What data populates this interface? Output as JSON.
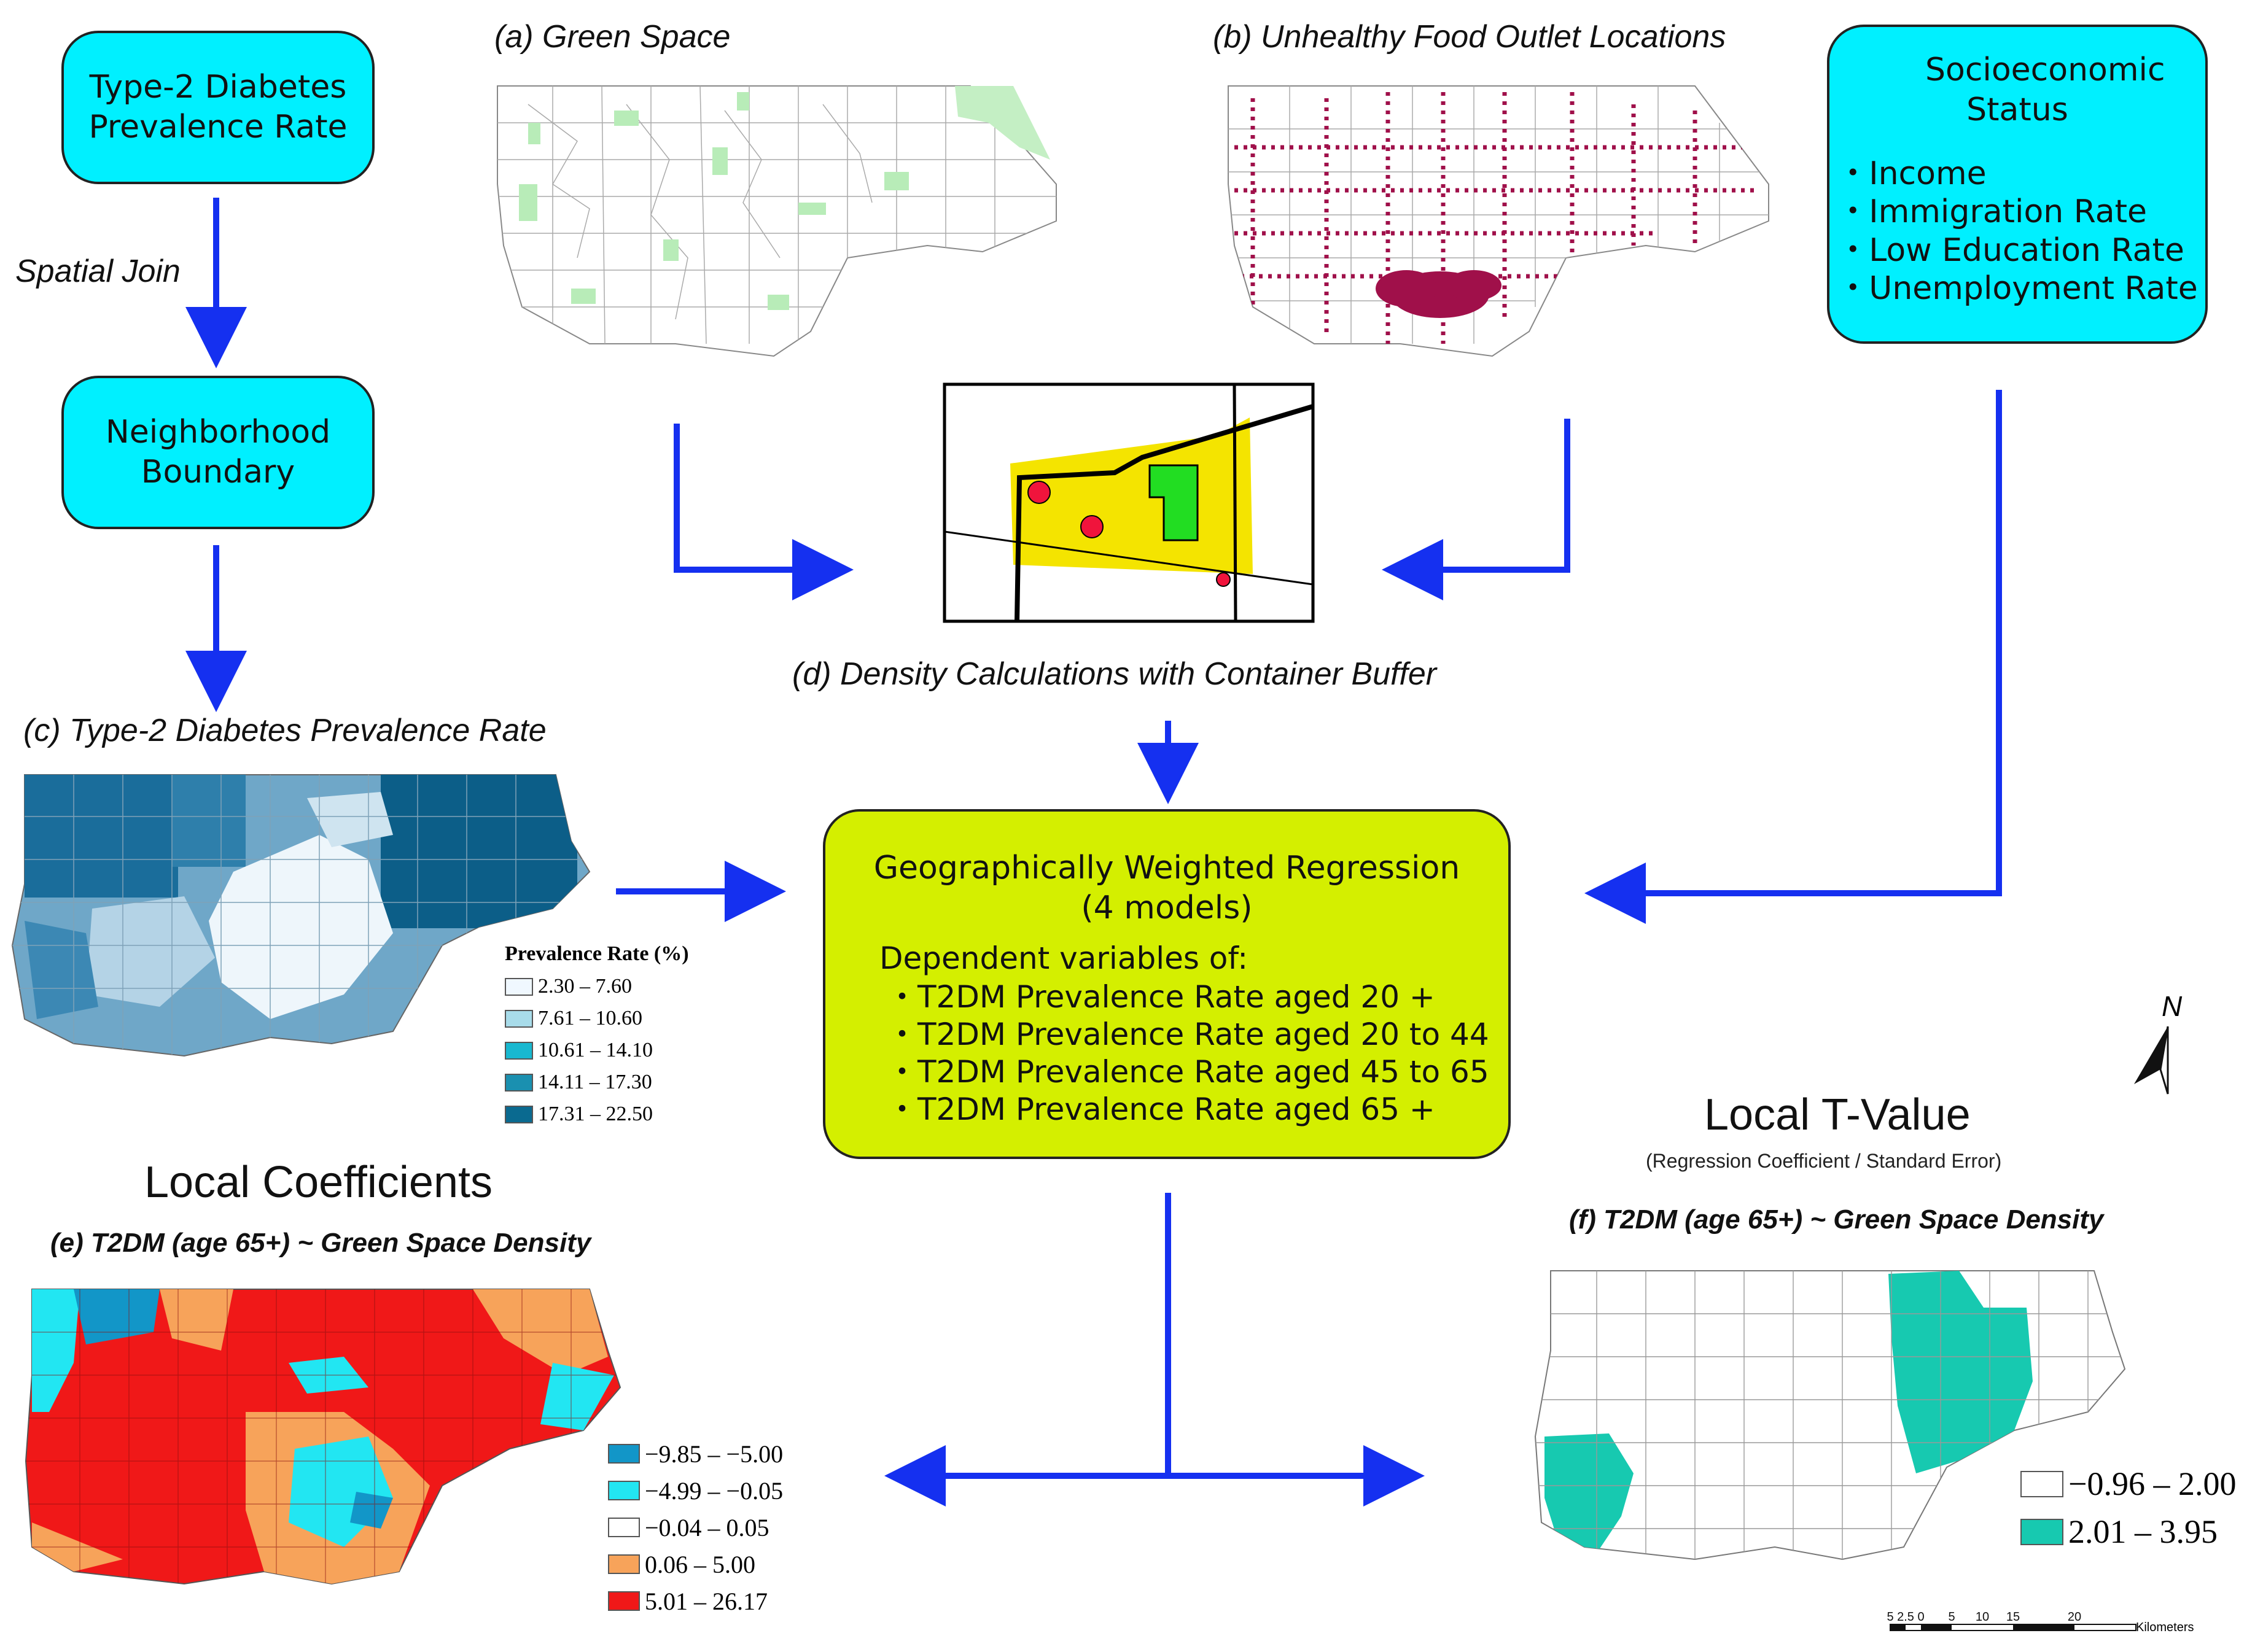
{
  "boxes": {
    "t2dm": "Type-2 Diabetes Prevalence Rate",
    "neighborhood": "Neighborhood Boundary",
    "ses_title": "Socioeconomic Status",
    "ses_items": [
      "Income",
      "Immigration Rate",
      "Low Education Rate",
      "Unemployment Rate"
    ]
  },
  "edge_labels": {
    "spatial_join": "Spatial Join"
  },
  "panels": {
    "a": "(a) Green Space",
    "b": "(b) Unhealthy Food Outlet Locations",
    "c": "(c) Type-2 Diabetes Prevalence Rate",
    "d": "(d) Density Calculations with Container Buffer",
    "e": "(e) T2DM (age 65+) ~ Green Space Density",
    "f": "(f) T2DM (age 65+) ~ Green Space Density"
  },
  "gwr": {
    "title1": "Geographically Weighted Regression",
    "title2": "(4 models)",
    "dep_heading": "Dependent variables of:",
    "items": [
      "T2DM Prevalence Rate aged 20 +",
      "T2DM Prevalence Rate aged 20 to 44",
      "T2DM Prevalence Rate aged 45 to 65",
      "T2DM Prevalence Rate aged 65 +"
    ]
  },
  "headings": {
    "local_coefficients": "Local Coefficients",
    "local_t": "Local T-Value",
    "local_t_sub": "(Regression Coefficient / Standard Error)"
  },
  "legend_c": {
    "title": "Prevalence Rate (%)",
    "items": [
      {
        "label": "2.30 – 7.60",
        "color": "#f0f8ff"
      },
      {
        "label": "7.61 – 10.60",
        "color": "#a8dcea"
      },
      {
        "label": "10.61 – 14.10",
        "color": "#18b8d0"
      },
      {
        "label": "14.11 – 17.30",
        "color": "#1a90b0"
      },
      {
        "label": "17.31 – 22.50",
        "color": "#0a6a90"
      }
    ]
  },
  "legend_e": {
    "items": [
      {
        "label": "−9.85 – −5.00",
        "color": "#1296c8"
      },
      {
        "label": "−4.99 – −0.05",
        "color": "#22e6f2"
      },
      {
        "label": "−0.04 – 0.05",
        "color": "#ffffff"
      },
      {
        "label": "0.06 – 5.00",
        "color": "#f7a35a"
      },
      {
        "label": "5.01 – 26.17",
        "color": "#f01818"
      }
    ]
  },
  "legend_f": {
    "items": [
      {
        "label": "−0.96 – 2.00",
        "color": "#ffffff"
      },
      {
        "label": "2.01 – 3.95",
        "color": "#17c9b0"
      }
    ]
  },
  "north": "N",
  "scalebar": {
    "ticks": [
      "5",
      "2.5",
      "0",
      "5",
      "10",
      "15",
      "20"
    ],
    "unit": "Kilometers"
  }
}
